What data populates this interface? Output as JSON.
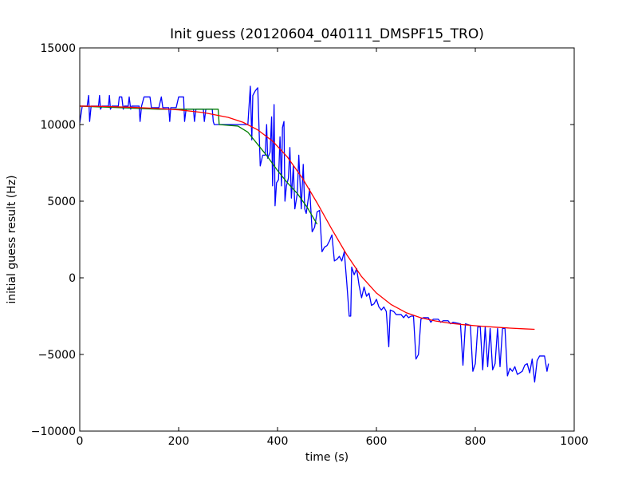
{
  "chart_data": {
    "type": "line",
    "title": "Init guess (20120604_040111_DMSPF15_TRO)",
    "xlabel": "time (s)",
    "ylabel": "initial guess result (Hz)",
    "xlim": [
      0,
      1000
    ],
    "ylim": [
      -10000,
      15000
    ],
    "x_ticks": [
      0,
      200,
      400,
      600,
      800,
      1000
    ],
    "y_ticks": [
      -10000,
      -5000,
      0,
      5000,
      10000,
      15000
    ],
    "grid": false,
    "legend": "none",
    "series": [
      {
        "color": "#0000ff",
        "points": [
          [
            0,
            10100
          ],
          [
            5,
            11200
          ],
          [
            15,
            11200
          ],
          [
            18,
            11900
          ],
          [
            20,
            10200
          ],
          [
            23,
            11200
          ],
          [
            38,
            11200
          ],
          [
            40,
            11900
          ],
          [
            42,
            11000
          ],
          [
            45,
            11200
          ],
          [
            58,
            11200
          ],
          [
            60,
            11900
          ],
          [
            62,
            11000
          ],
          [
            65,
            11200
          ],
          [
            78,
            11200
          ],
          [
            80,
            11800
          ],
          [
            85,
            11800
          ],
          [
            88,
            11000
          ],
          [
            90,
            11200
          ],
          [
            98,
            11200
          ],
          [
            100,
            11800
          ],
          [
            103,
            11000
          ],
          [
            105,
            11200
          ],
          [
            120,
            11200
          ],
          [
            122,
            10200
          ],
          [
            125,
            11200
          ],
          [
            130,
            11800
          ],
          [
            142,
            11800
          ],
          [
            145,
            11100
          ],
          [
            160,
            11100
          ],
          [
            165,
            11800
          ],
          [
            168,
            11100
          ],
          [
            180,
            11100
          ],
          [
            182,
            10200
          ],
          [
            184,
            11100
          ],
          [
            195,
            11100
          ],
          [
            200,
            11800
          ],
          [
            210,
            11800
          ],
          [
            212,
            10200
          ],
          [
            215,
            11000
          ],
          [
            230,
            11000
          ],
          [
            232,
            10200
          ],
          [
            235,
            11000
          ],
          [
            250,
            11000
          ],
          [
            252,
            10200
          ],
          [
            255,
            11000
          ],
          [
            268,
            11000
          ],
          [
            270,
            10200
          ],
          [
            272,
            10000
          ],
          [
            290,
            10000
          ],
          [
            295,
            10000
          ],
          [
            300,
            10000
          ],
          [
            310,
            10000
          ],
          [
            318,
            10000
          ],
          [
            320,
            10000
          ],
          [
            340,
            10000
          ],
          [
            345,
            12500
          ],
          [
            348,
            9000
          ],
          [
            350,
            11900
          ],
          [
            355,
            12200
          ],
          [
            360,
            12400
          ],
          [
            365,
            7300
          ],
          [
            370,
            8000
          ],
          [
            375,
            8000
          ],
          [
            378,
            10000
          ],
          [
            380,
            7800
          ],
          [
            385,
            8200
          ],
          [
            388,
            10500
          ],
          [
            390,
            6000
          ],
          [
            393,
            11300
          ],
          [
            395,
            4700
          ],
          [
            398,
            6200
          ],
          [
            402,
            6400
          ],
          [
            405,
            9200
          ],
          [
            408,
            6000
          ],
          [
            410,
            9800
          ],
          [
            413,
            10200
          ],
          [
            415,
            5000
          ],
          [
            418,
            6000
          ],
          [
            422,
            6500
          ],
          [
            425,
            8500
          ],
          [
            428,
            5200
          ],
          [
            432,
            7300
          ],
          [
            435,
            4500
          ],
          [
            440,
            5500
          ],
          [
            443,
            8000
          ],
          [
            448,
            4500
          ],
          [
            452,
            7400
          ],
          [
            455,
            4500
          ],
          [
            458,
            4200
          ],
          [
            465,
            5800
          ],
          [
            470,
            3000
          ],
          [
            475,
            3300
          ],
          [
            480,
            4300
          ],
          [
            485,
            4400
          ],
          [
            490,
            1700
          ],
          [
            495,
            2000
          ],
          [
            500,
            2100
          ],
          [
            505,
            2400
          ],
          [
            510,
            2800
          ],
          [
            515,
            1100
          ],
          [
            520,
            1200
          ],
          [
            525,
            1400
          ],
          [
            530,
            1100
          ],
          [
            535,
            1700
          ],
          [
            540,
            -300
          ],
          [
            545,
            -2500
          ],
          [
            548,
            -2500
          ],
          [
            550,
            700
          ],
          [
            555,
            200
          ],
          [
            560,
            600
          ],
          [
            565,
            -500
          ],
          [
            570,
            -1300
          ],
          [
            575,
            -600
          ],
          [
            580,
            -1200
          ],
          [
            585,
            -1000
          ],
          [
            590,
            -1800
          ],
          [
            595,
            -1700
          ],
          [
            600,
            -1400
          ],
          [
            605,
            -1900
          ],
          [
            610,
            -2100
          ],
          [
            615,
            -1900
          ],
          [
            620,
            -2200
          ],
          [
            625,
            -4500
          ],
          [
            628,
            -2100
          ],
          [
            635,
            -2200
          ],
          [
            640,
            -2400
          ],
          [
            650,
            -2400
          ],
          [
            655,
            -2600
          ],
          [
            660,
            -2400
          ],
          [
            665,
            -2600
          ],
          [
            670,
            -2500
          ],
          [
            675,
            -2500
          ],
          [
            680,
            -5300
          ],
          [
            685,
            -5000
          ],
          [
            690,
            -2700
          ],
          [
            695,
            -2600
          ],
          [
            705,
            -2600
          ],
          [
            710,
            -2900
          ],
          [
            715,
            -2700
          ],
          [
            725,
            -2700
          ],
          [
            730,
            -2900
          ],
          [
            735,
            -2800
          ],
          [
            745,
            -2800
          ],
          [
            750,
            -3000
          ],
          [
            755,
            -2900
          ],
          [
            770,
            -3000
          ],
          [
            775,
            -5700
          ],
          [
            780,
            -3000
          ],
          [
            790,
            -3100
          ],
          [
            795,
            -6100
          ],
          [
            800,
            -5600
          ],
          [
            805,
            -3200
          ],
          [
            810,
            -3200
          ],
          [
            815,
            -6000
          ],
          [
            820,
            -3200
          ],
          [
            825,
            -5800
          ],
          [
            830,
            -3300
          ],
          [
            835,
            -6000
          ],
          [
            840,
            -5600
          ],
          [
            845,
            -3300
          ],
          [
            850,
            -5800
          ],
          [
            855,
            -3300
          ],
          [
            860,
            -3300
          ],
          [
            865,
            -6400
          ],
          [
            870,
            -5900
          ],
          [
            875,
            -6100
          ],
          [
            880,
            -5800
          ],
          [
            885,
            -6300
          ],
          [
            890,
            -6200
          ],
          [
            895,
            -6100
          ],
          [
            900,
            -5700
          ],
          [
            905,
            -5600
          ],
          [
            910,
            -6200
          ],
          [
            915,
            -5300
          ],
          [
            920,
            -6800
          ],
          [
            925,
            -5400
          ],
          [
            930,
            -5100
          ],
          [
            940,
            -5100
          ],
          [
            945,
            -6100
          ],
          [
            948,
            -5600
          ]
        ]
      },
      {
        "color": "#007f00",
        "points": [
          [
            0,
            11200
          ],
          [
            40,
            11150
          ],
          [
            80,
            11100
          ],
          [
            120,
            11050
          ],
          [
            160,
            11000
          ],
          [
            200,
            11000
          ],
          [
            240,
            11000
          ],
          [
            280,
            11000
          ],
          [
            282,
            10000
          ],
          [
            300,
            9950
          ],
          [
            320,
            9900
          ],
          [
            340,
            9500
          ],
          [
            360,
            8700
          ],
          [
            380,
            7900
          ],
          [
            400,
            7000
          ],
          [
            420,
            6200
          ],
          [
            440,
            5500
          ],
          [
            460,
            4600
          ],
          [
            480,
            3500
          ]
        ]
      },
      {
        "color": "#ff0000",
        "points": [
          [
            0,
            11200
          ],
          [
            50,
            11180
          ],
          [
            100,
            11130
          ],
          [
            150,
            11060
          ],
          [
            200,
            10960
          ],
          [
            250,
            10780
          ],
          [
            300,
            10470
          ],
          [
            330,
            10150
          ],
          [
            360,
            9650
          ],
          [
            390,
            8920
          ],
          [
            420,
            7880
          ],
          [
            450,
            6520
          ],
          [
            480,
            4890
          ],
          [
            510,
            3160
          ],
          [
            540,
            1510
          ],
          [
            570,
            80
          ],
          [
            600,
            -990
          ],
          [
            630,
            -1750
          ],
          [
            660,
            -2270
          ],
          [
            690,
            -2610
          ],
          [
            720,
            -2820
          ],
          [
            750,
            -2970
          ],
          [
            780,
            -3070
          ],
          [
            810,
            -3150
          ],
          [
            840,
            -3220
          ],
          [
            870,
            -3280
          ],
          [
            900,
            -3330
          ],
          [
            920,
            -3360
          ]
        ]
      }
    ]
  }
}
